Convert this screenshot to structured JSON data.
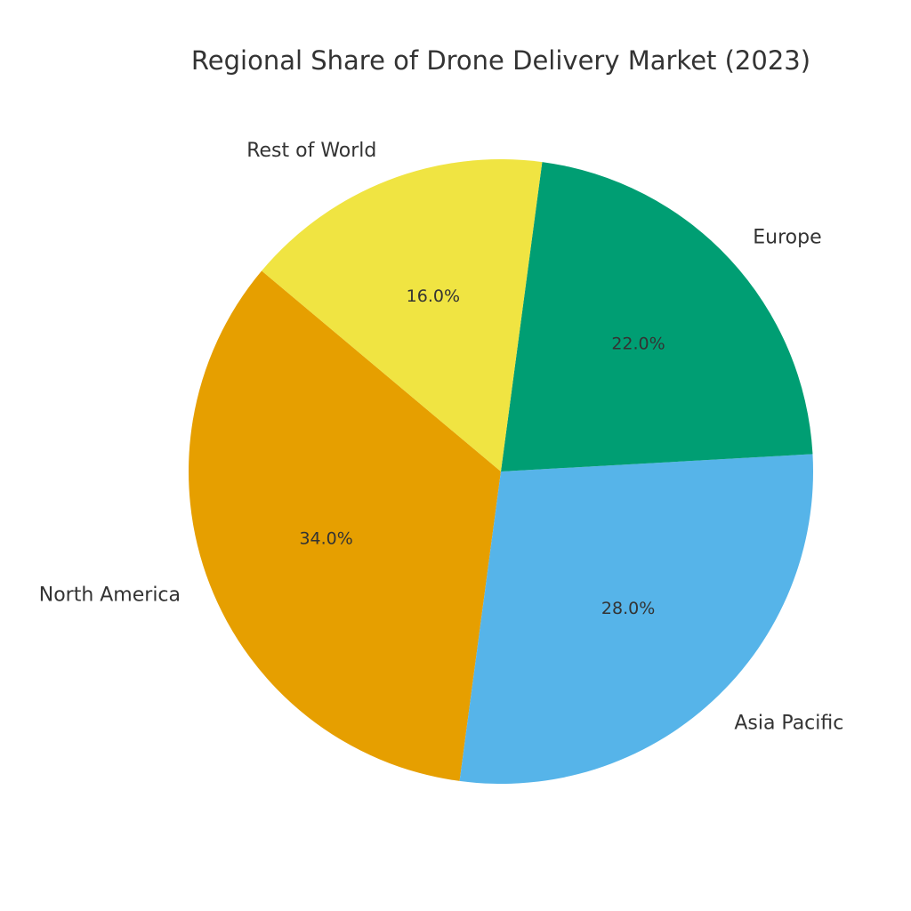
{
  "chart_data": {
    "type": "pie",
    "title": "Regional Share of Drone Delivery Market (2023)",
    "categories": [
      "North America",
      "Asia Pacific",
      "Europe",
      "Rest of World"
    ],
    "values": [
      34,
      28,
      22,
      16
    ],
    "value_labels": [
      "34.0%",
      "28.0%",
      "22.0%",
      "16.0%"
    ],
    "colors": [
      "#E69F00",
      "#56B4E9",
      "#009E73",
      "#F0E442"
    ]
  }
}
